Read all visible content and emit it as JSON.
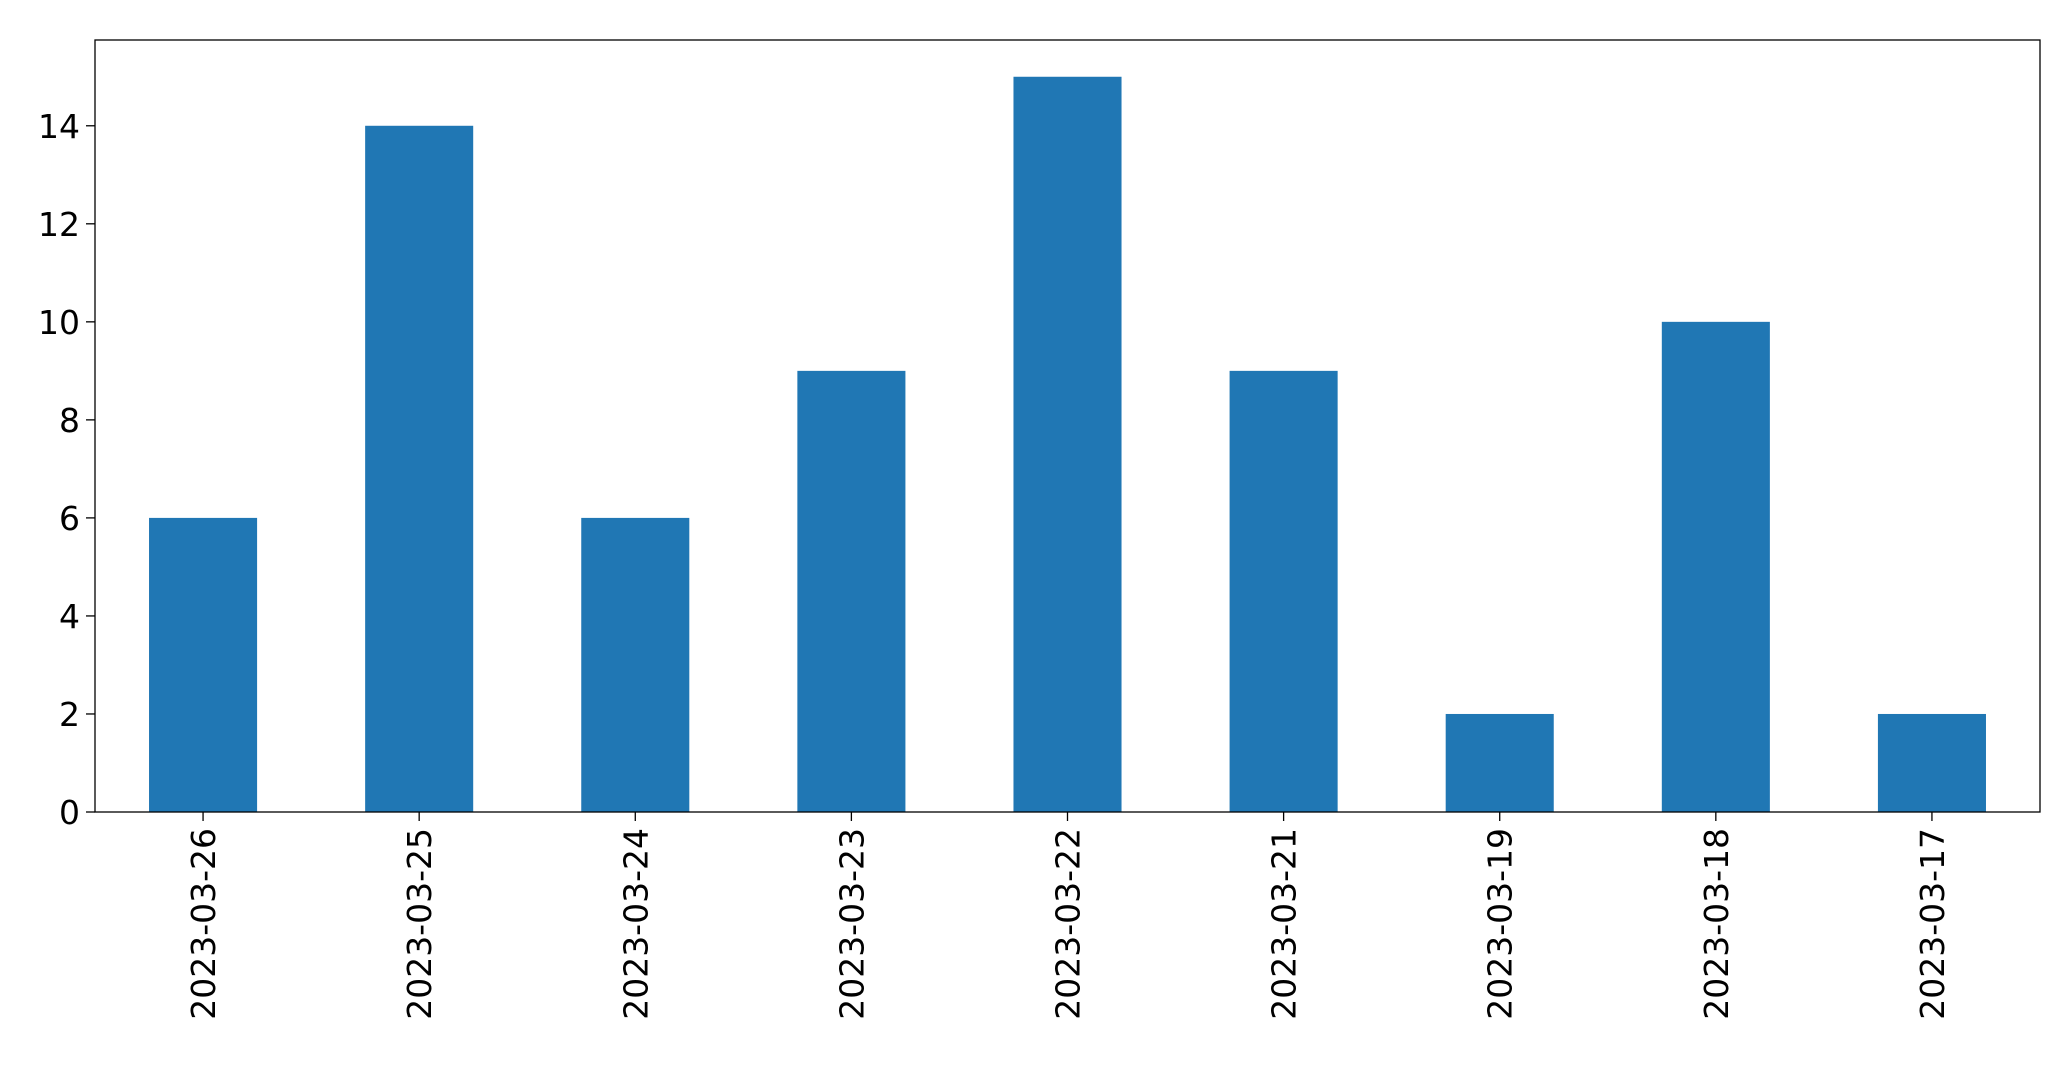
{
  "chart_data": {
    "type": "bar",
    "categories": [
      "2023-03-26",
      "2023-03-25",
      "2023-03-24",
      "2023-03-23",
      "2023-03-22",
      "2023-03-21",
      "2023-03-19",
      "2023-03-18",
      "2023-03-17"
    ],
    "values": [
      6,
      14,
      6,
      9,
      15,
      9,
      2,
      10,
      2
    ],
    "ylim": [
      0,
      15.75
    ],
    "yticks": [
      0,
      2,
      4,
      6,
      8,
      10,
      12,
      14
    ],
    "grid": false,
    "bar_color": "#2077b4",
    "axis_color": "#000000"
  }
}
